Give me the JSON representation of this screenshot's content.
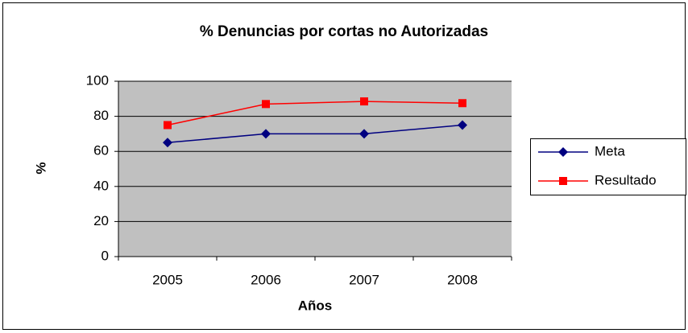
{
  "chart_data": {
    "type": "line",
    "title": "% Denuncias por cortas no Autorizadas",
    "xlabel": "Años",
    "ylabel": "%",
    "categories": [
      "2005",
      "2006",
      "2007",
      "2008"
    ],
    "series": [
      {
        "name": "Meta",
        "color": "#000080",
        "marker": "diamond",
        "values": [
          65,
          70,
          70,
          75
        ]
      },
      {
        "name": "Resultado",
        "color": "#ff0000",
        "marker": "square",
        "values": [
          75,
          87,
          88.5,
          87.5
        ]
      }
    ],
    "ylim": [
      0,
      100
    ],
    "yticks": [
      0,
      20,
      40,
      60,
      80,
      100
    ],
    "grid": true,
    "legend": "right"
  }
}
